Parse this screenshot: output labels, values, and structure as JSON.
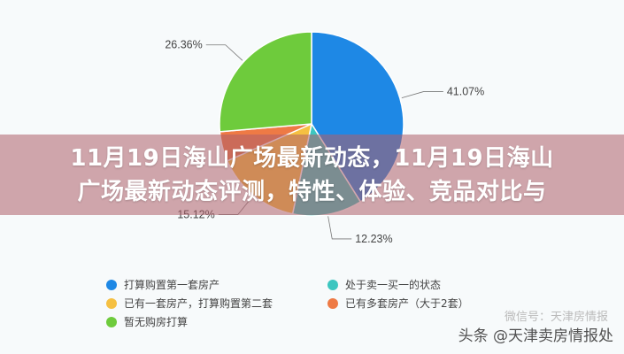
{
  "chart_data": {
    "type": "pie",
    "title": "",
    "start_angle": "top",
    "direction": "clockwise",
    "slices": [
      {
        "label": "打算购置第一套房产",
        "value": 41.07,
        "display": "41.07%",
        "color": "#1e88e5"
      },
      {
        "label": "处于卖一买一的状态",
        "value": 12.23,
        "display": "12.23%",
        "color": "#3cc6c0"
      },
      {
        "label": "已有一套房产，打算购置第二套",
        "value": 15.12,
        "display": "15.12%",
        "color": "#f5c042"
      },
      {
        "label": "已有多套房产（大于2套）",
        "value": 5.22,
        "display": "",
        "color": "#ee7a45"
      },
      {
        "label": "暂无购房打算",
        "value": 26.36,
        "display": "26.36%",
        "color": "#6ecb3c"
      }
    ],
    "legend_position": "bottom"
  },
  "overlay": {
    "title_line1": "11月19日海山广场最新动态，11月19日海山",
    "title_line2": "广场最新动态评测，特性、体验、竞品对比与"
  },
  "watermark": {
    "source": "头条 @天津卖房情报处",
    "faded": "微信号：天津房情报"
  }
}
